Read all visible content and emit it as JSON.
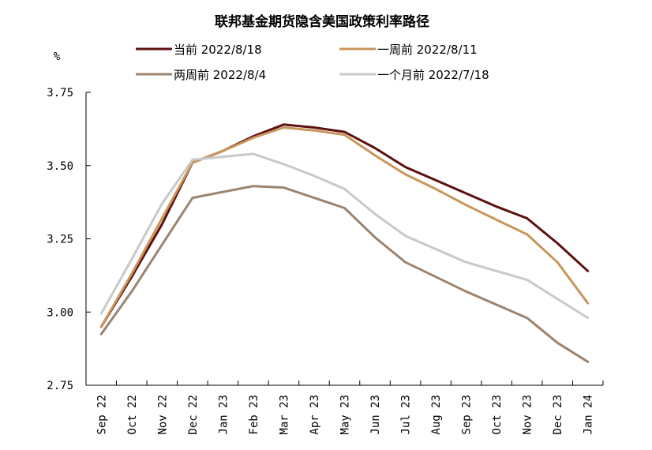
{
  "chart_data": {
    "type": "line",
    "title": "联邦基金期货隐含美国政策利率路径",
    "ylabel": "%",
    "xlabel": "",
    "ylim": [
      2.75,
      3.75
    ],
    "yticks": [
      "3.75",
      "3.50",
      "3.25",
      "3.00",
      "2.75"
    ],
    "ytick_values": [
      3.75,
      3.5,
      3.25,
      3.0,
      2.75
    ],
    "categories": [
      "Sep 22",
      "Oct 22",
      "Nov 22",
      "Dec 22",
      "Jan 23",
      "Feb 23",
      "Mar 23",
      "Apr 23",
      "May 23",
      "Jun 23",
      "Jul 23",
      "Aug 23",
      "Sep 23",
      "Oct 23",
      "Nov 23",
      "Dec 23",
      "Jan 24"
    ],
    "legend_position": "top",
    "grid": false,
    "series": [
      {
        "name": "当前 2022/8/18",
        "color": "#5c1010",
        "x": [
          0,
          1,
          2,
          3,
          4,
          5,
          6,
          7,
          8,
          9,
          10,
          11,
          12,
          13,
          14,
          15,
          16
        ],
        "values": [
          2.95,
          3.12,
          3.3,
          3.51,
          3.55,
          3.6,
          3.64,
          3.63,
          3.615,
          3.56,
          3.495,
          3.45,
          3.405,
          3.36,
          3.32,
          3.235,
          3.14
        ]
      },
      {
        "name": "一周前 2022/8/11",
        "color": "#c8965a",
        "x": [
          0,
          1,
          2,
          3,
          4,
          5,
          6,
          7,
          8,
          9,
          10,
          11,
          12,
          13,
          14,
          15,
          16
        ],
        "values": [
          2.95,
          3.13,
          3.32,
          3.51,
          3.55,
          3.595,
          3.63,
          3.62,
          3.605,
          3.535,
          3.47,
          3.42,
          3.365,
          3.315,
          3.265,
          3.17,
          3.03
        ]
      },
      {
        "name": "两周前 2022/8/4",
        "color": "#9b8470",
        "x": [
          0,
          1,
          2,
          3,
          4,
          5,
          6,
          7,
          8,
          9,
          10,
          11,
          12,
          13,
          14,
          15,
          16
        ],
        "values": [
          2.925,
          3.07,
          3.23,
          3.39,
          3.41,
          3.43,
          3.425,
          3.39,
          3.355,
          3.255,
          3.17,
          3.12,
          3.07,
          3.025,
          2.98,
          2.895,
          2.83
        ]
      },
      {
        "name": "一个月前 2022/7/18",
        "color": "#c9c9c9",
        "x": [
          0,
          1,
          2,
          3,
          4,
          5,
          6,
          7,
          8,
          9,
          10,
          11,
          12,
          13,
          14,
          15,
          16
        ],
        "values": [
          2.995,
          3.18,
          3.37,
          3.52,
          3.53,
          3.54,
          3.505,
          3.465,
          3.42,
          3.335,
          3.26,
          3.215,
          3.17,
          3.14,
          3.11,
          3.045,
          2.98
        ]
      }
    ]
  }
}
